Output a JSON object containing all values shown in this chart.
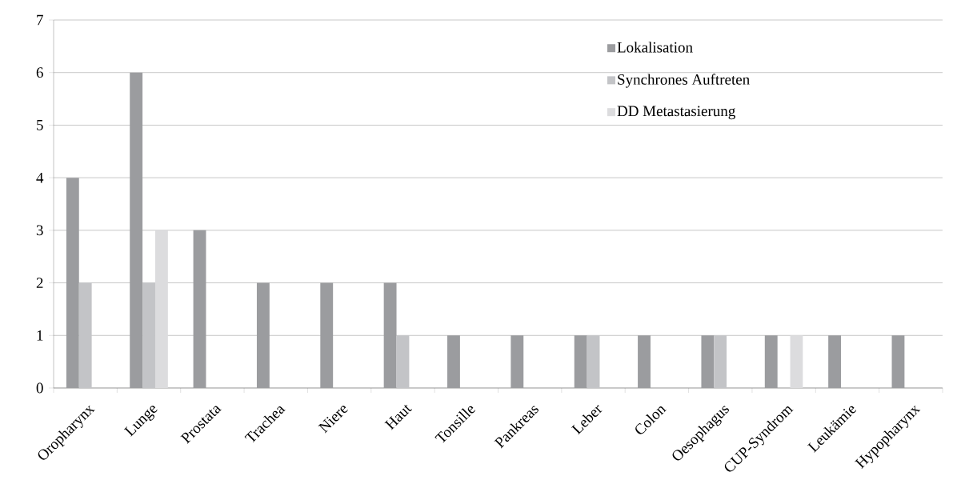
{
  "chart_data": {
    "type": "bar",
    "categories": [
      "Oropharynx",
      "Lunge",
      "Prostata",
      "Trachea",
      "Niere",
      "Haut",
      "Tonsille",
      "Pankreas",
      "Leber",
      "Colon",
      "Oesophagus",
      "CUP-Syndrom",
      "Leukämie",
      "Hypopharynx"
    ],
    "series": [
      {
        "name": "Lokalisation",
        "color": "#9b9c9f",
        "values": [
          4,
          6,
          3,
          2,
          2,
          2,
          1,
          1,
          1,
          1,
          1,
          1,
          1,
          1
        ]
      },
      {
        "name": "Synchrones Auftreten",
        "color": "#c3c4c7",
        "values": [
          2,
          2,
          null,
          null,
          null,
          1,
          null,
          null,
          1,
          null,
          1,
          null,
          null,
          null
        ]
      },
      {
        "name": "DD Metastasierung",
        "color": "#dcdcde",
        "values": [
          null,
          3,
          null,
          null,
          null,
          null,
          null,
          null,
          null,
          null,
          null,
          1,
          null,
          null
        ]
      }
    ],
    "ylim": [
      0,
      7
    ],
    "yticks": [
      0,
      1,
      2,
      3,
      4,
      5,
      6,
      7
    ],
    "grid": "y",
    "legend": "top right"
  }
}
